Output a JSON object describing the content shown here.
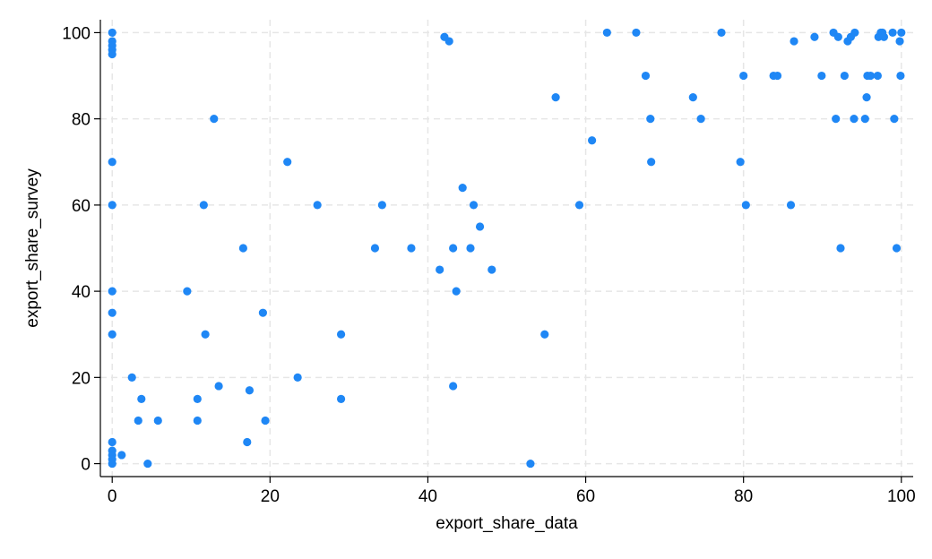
{
  "chart_data": {
    "type": "scatter",
    "xlabel": "export_share_data",
    "ylabel": "export_share_survey",
    "xlim": [
      -1.5,
      101.5
    ],
    "ylim": [
      -3,
      103
    ],
    "xticks": [
      0,
      20,
      40,
      60,
      80,
      100
    ],
    "yticks": [
      0,
      20,
      40,
      60,
      80,
      100
    ],
    "grid": true,
    "marker_color": "#1f87f5",
    "gridline_color": "#e6e6e6",
    "points": [
      [
        0,
        100
      ],
      [
        0,
        98
      ],
      [
        0,
        97
      ],
      [
        0,
        96
      ],
      [
        0,
        95
      ],
      [
        0,
        70
      ],
      [
        0,
        60
      ],
      [
        0,
        40
      ],
      [
        0,
        35
      ],
      [
        0,
        30
      ],
      [
        0,
        5
      ],
      [
        0,
        3
      ],
      [
        0,
        2
      ],
      [
        0,
        1
      ],
      [
        0,
        0
      ],
      [
        1.2,
        2
      ],
      [
        2.5,
        20
      ],
      [
        3.3,
        10
      ],
      [
        3.7,
        15
      ],
      [
        4.5,
        0
      ],
      [
        5.8,
        10
      ],
      [
        9.5,
        40
      ],
      [
        10.8,
        15
      ],
      [
        10.8,
        10
      ],
      [
        11.6,
        60
      ],
      [
        11.8,
        30
      ],
      [
        12.9,
        80
      ],
      [
        13.5,
        18
      ],
      [
        16.6,
        50
      ],
      [
        17.1,
        5
      ],
      [
        17.4,
        17
      ],
      [
        19.1,
        35
      ],
      [
        19.4,
        10
      ],
      [
        22.2,
        70
      ],
      [
        23.5,
        20
      ],
      [
        26.0,
        60
      ],
      [
        29.0,
        30
      ],
      [
        29.0,
        15
      ],
      [
        33.3,
        50
      ],
      [
        34.2,
        60
      ],
      [
        37.9,
        50
      ],
      [
        41.5,
        45
      ],
      [
        42.1,
        99
      ],
      [
        42.7,
        98
      ],
      [
        43.2,
        50
      ],
      [
        43.2,
        18
      ],
      [
        43.6,
        40
      ],
      [
        44.4,
        64
      ],
      [
        45.4,
        50
      ],
      [
        45.8,
        60
      ],
      [
        46.6,
        55
      ],
      [
        48.1,
        45
      ],
      [
        53.0,
        0
      ],
      [
        54.8,
        30
      ],
      [
        56.2,
        85
      ],
      [
        59.2,
        60
      ],
      [
        60.8,
        75
      ],
      [
        62.7,
        100
      ],
      [
        66.4,
        100
      ],
      [
        67.6,
        90
      ],
      [
        68.2,
        80
      ],
      [
        68.3,
        70
      ],
      [
        73.6,
        85
      ],
      [
        74.6,
        80
      ],
      [
        77.2,
        100
      ],
      [
        79.6,
        70
      ],
      [
        80.0,
        90
      ],
      [
        80.3,
        60
      ],
      [
        83.8,
        90
      ],
      [
        84.3,
        90
      ],
      [
        86.0,
        60
      ],
      [
        86.4,
        98
      ],
      [
        89.0,
        99
      ],
      [
        89.9,
        90
      ],
      [
        91.4,
        100
      ],
      [
        91.7,
        80
      ],
      [
        92.0,
        99
      ],
      [
        92.3,
        50
      ],
      [
        92.8,
        90
      ],
      [
        93.2,
        98
      ],
      [
        93.6,
        99
      ],
      [
        94.1,
        100
      ],
      [
        94.0,
        80
      ],
      [
        95.4,
        80
      ],
      [
        95.6,
        85
      ],
      [
        95.7,
        90
      ],
      [
        96.1,
        90
      ],
      [
        97.0,
        90
      ],
      [
        97.1,
        99
      ],
      [
        97.4,
        100
      ],
      [
        97.6,
        100
      ],
      [
        97.8,
        99
      ],
      [
        98.9,
        100
      ],
      [
        99.1,
        80
      ],
      [
        99.4,
        50
      ],
      [
        99.8,
        98
      ],
      [
        99.9,
        90
      ],
      [
        100,
        100
      ]
    ]
  }
}
